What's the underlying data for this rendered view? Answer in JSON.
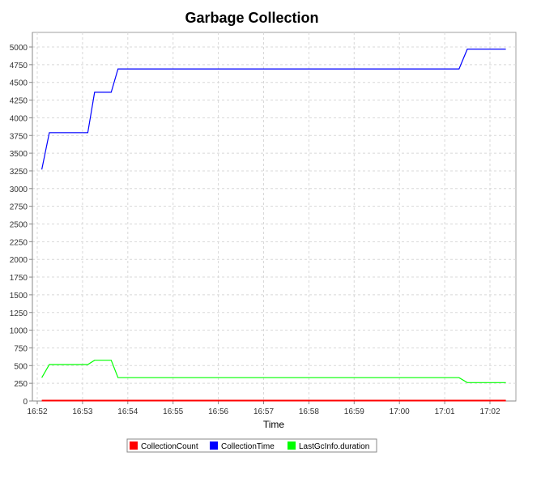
{
  "chart_data": {
    "type": "line",
    "title": "Garbage Collection",
    "xlabel": "Time",
    "ylabel": "",
    "xlim": [
      "16:51:50",
      "17:02:45"
    ],
    "ylim": [
      0,
      5200
    ],
    "x_ticks": [
      "16:52",
      "16:53",
      "16:54",
      "16:55",
      "16:56",
      "16:57",
      "16:58",
      "16:59",
      "17:00",
      "17:01",
      "17:02"
    ],
    "y_ticks": [
      0,
      250,
      500,
      750,
      1000,
      1250,
      1500,
      1750,
      2000,
      2250,
      2500,
      2750,
      3000,
      3250,
      3500,
      3750,
      4000,
      4250,
      4500,
      4750,
      5000
    ],
    "grid": true,
    "legend": "bottom",
    "series": [
      {
        "name": "CollectionCount",
        "color": "#ff0000",
        "x": [
          "16:52:06",
          "17:02:21"
        ],
        "y": [
          6,
          6
        ]
      },
      {
        "name": "CollectionTime",
        "color": "#0000ff",
        "x": [
          "16:52:06",
          "16:52:16",
          "16:53:07",
          "16:53:16",
          "16:53:38",
          "16:53:47",
          "17:01:19",
          "17:01:30",
          "17:02:21"
        ],
        "y": [
          3270,
          3790,
          3790,
          4360,
          4360,
          4690,
          4690,
          4970,
          4970
        ]
      },
      {
        "name": "LastGcInfo.duration",
        "color": "#00ff00",
        "x": [
          "16:52:06",
          "16:52:16",
          "16:53:07",
          "16:53:16",
          "16:53:38",
          "16:53:47",
          "17:01:19",
          "17:01:30",
          "17:02:21"
        ],
        "y": [
          330,
          515,
          515,
          575,
          575,
          330,
          330,
          260,
          260
        ]
      }
    ]
  }
}
